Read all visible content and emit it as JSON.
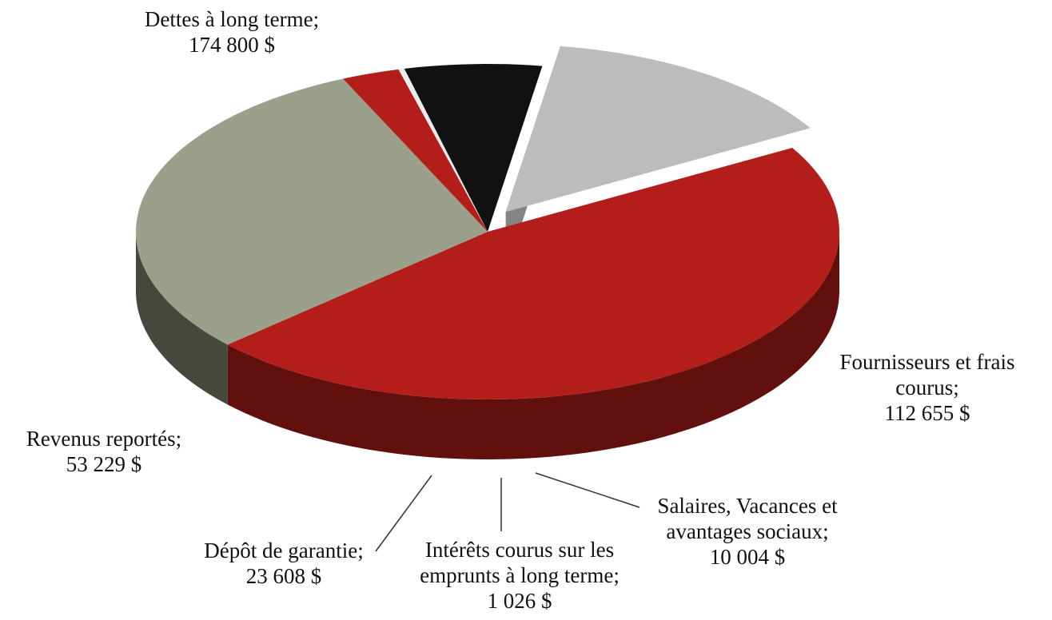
{
  "chart_data": {
    "type": "pie3d",
    "categories": [
      "Dettes à long terme;",
      "Fournisseurs et frais courus;",
      "Salaires, Vacances et avantages sociaux;",
      "Intérêts courus sur les emprunts à long terme;",
      "Dépôt de garantie;",
      "Revenus reportés;"
    ],
    "values": [
      174800,
      112655,
      10004,
      1026,
      23608,
      53229
    ],
    "value_labels": [
      "174 800  $",
      "112 655  $",
      "10 004  $",
      "1 026  $",
      "23 608  $",
      "53 229  $"
    ],
    "colors": [
      "#b31d1a",
      "#9ba08a",
      "#b31d1a",
      "#ececec",
      "#111111",
      "#bcbcbc"
    ],
    "exploded": [
      false,
      false,
      false,
      false,
      false,
      true
    ]
  }
}
